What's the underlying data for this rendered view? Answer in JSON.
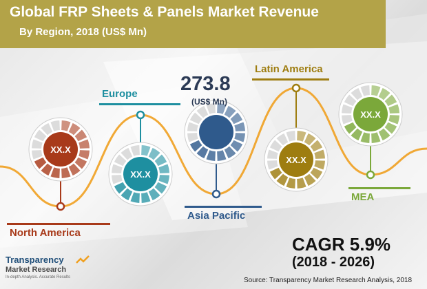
{
  "header": {
    "title": "Global FRP Sheets & Panels Market Revenue",
    "subtitle": "By Region, 2018 (US$ Mn)"
  },
  "chart_data": {
    "type": "infographic",
    "title": "Global FRP Sheets & Panels Market Revenue",
    "subtitle": "By Region, 2018 (US$ Mn)",
    "categories": [
      "North America",
      "Europe",
      "Asia Pacific",
      "Latin America",
      "MEA"
    ],
    "values": [
      "XX.X",
      "XX.X",
      "273.8",
      "XX.X",
      "XX.X"
    ],
    "highlight": {
      "region": "Asia Pacific",
      "value": "273.8",
      "unit": "(US$ Mn)"
    },
    "colors": [
      "#a83a1a",
      "#1e8fa0",
      "#2f5a8c",
      "#9e7d10",
      "#7ba83a"
    ],
    "wave_color": "#f0a020"
  },
  "cagr": {
    "label": "CAGR 5.9%",
    "period": "(2018 - 2026)"
  },
  "source": "Source: Transparency Market Research Analysis, 2018",
  "logo": {
    "name": "Transparency",
    "sub": "Market Research",
    "tagline": "In-depth Analysis. Accurate Results"
  }
}
